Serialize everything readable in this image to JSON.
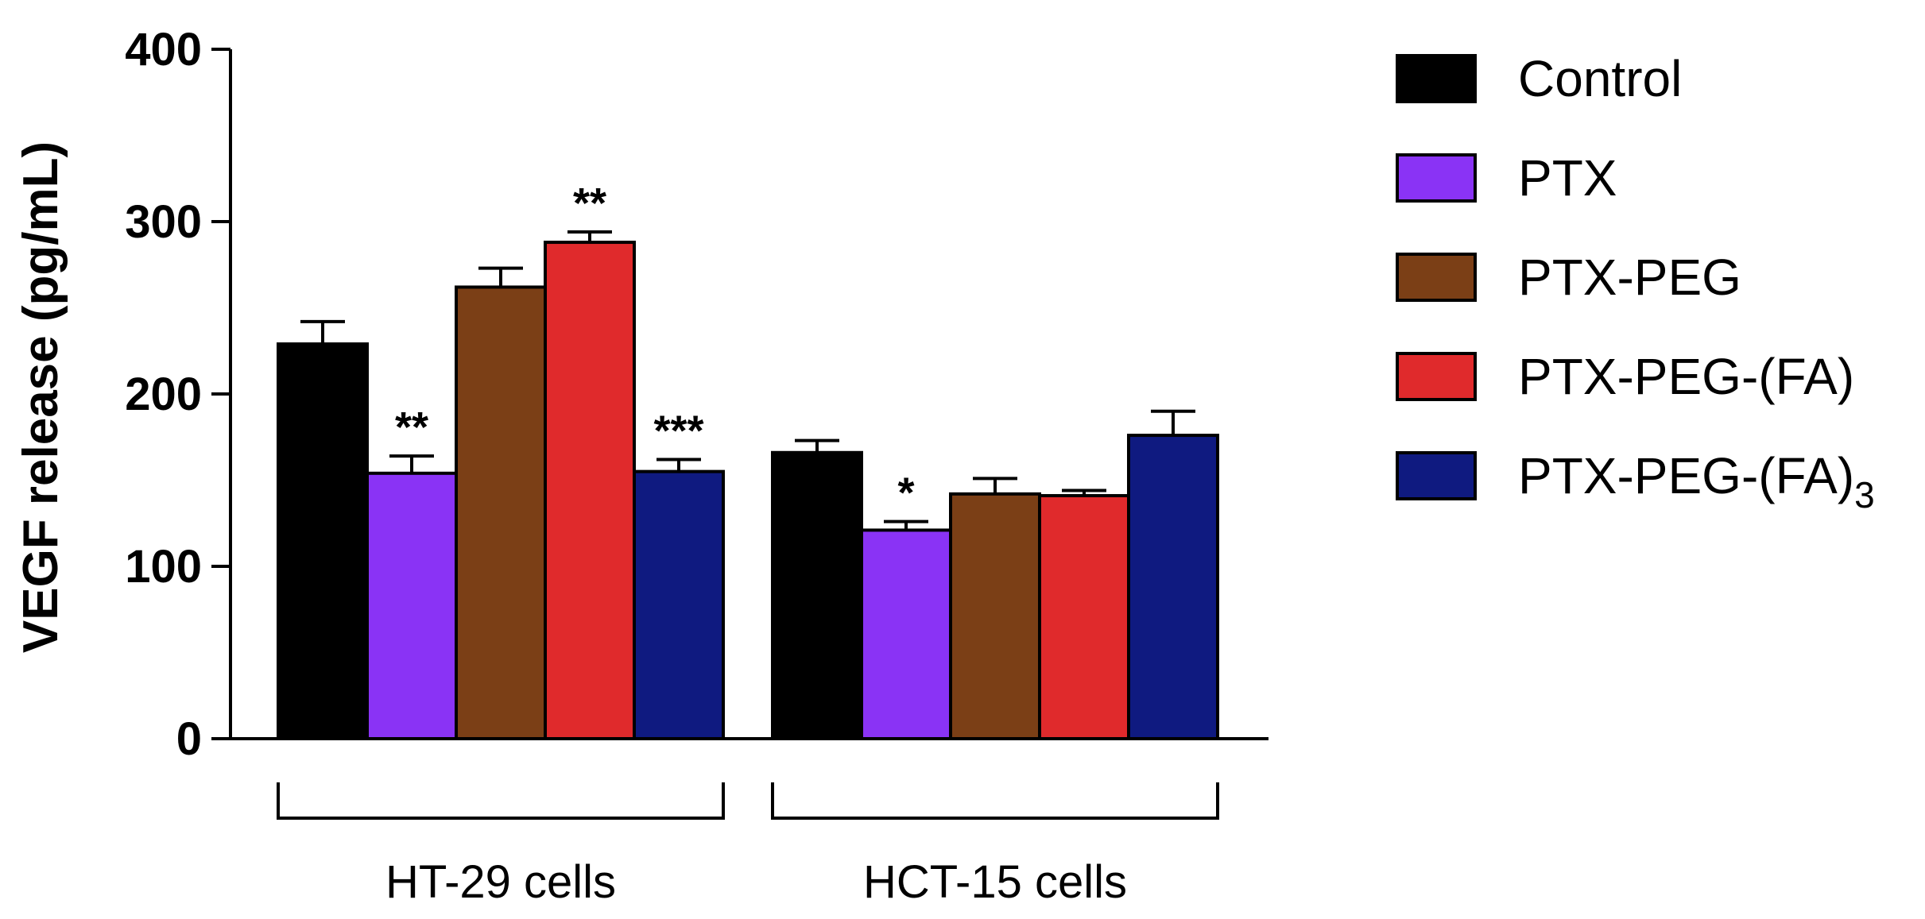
{
  "chart_data": {
    "type": "bar",
    "title": "",
    "xlabel": "",
    "ylabel": "VEGF release (pg/mL)",
    "ylim": [
      0,
      400
    ],
    "yticks": [
      0,
      100,
      200,
      300,
      400
    ],
    "categories": [
      "HT-29 cells",
      "HCT-15 cells"
    ],
    "series": [
      {
        "name": "Control",
        "legend_main": "Control",
        "legend_sub": "",
        "color": "#000000",
        "values": [
          229,
          166
        ],
        "errors": [
          13,
          7
        ],
        "sig": [
          "",
          ""
        ]
      },
      {
        "name": "PTX",
        "legend_main": "PTX",
        "legend_sub": "",
        "color": "#8a33f5",
        "values": [
          154,
          121
        ],
        "errors": [
          10,
          5
        ],
        "sig": [
          "**",
          "*"
        ]
      },
      {
        "name": "PTX-PEG",
        "legend_main": "PTX-PEG",
        "legend_sub": "",
        "color": "#7b3f16",
        "values": [
          262,
          142
        ],
        "errors": [
          11,
          9
        ],
        "sig": [
          "",
          ""
        ]
      },
      {
        "name": "PTX-PEG-(FA)",
        "legend_main": "PTX-PEG-(FA)",
        "legend_sub": "",
        "color": "#e02a2c",
        "values": [
          288,
          141
        ],
        "errors": [
          6,
          3
        ],
        "sig": [
          "**",
          ""
        ]
      },
      {
        "name": "PTX-PEG-(FA)3",
        "legend_main": "PTX-PEG-(FA)",
        "legend_sub": "3",
        "color": "#0f1a80",
        "values": [
          155,
          176
        ],
        "errors": [
          7,
          14
        ],
        "sig": [
          "***",
          ""
        ]
      }
    ],
    "legend": "right"
  }
}
